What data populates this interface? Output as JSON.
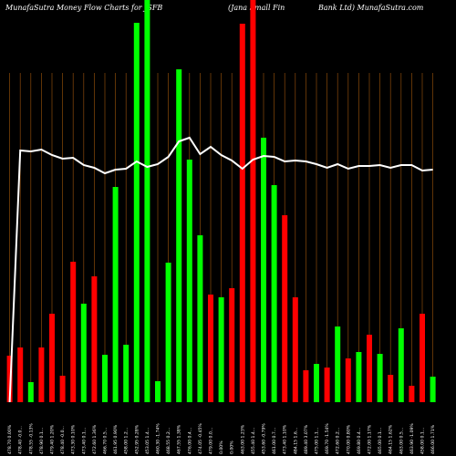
{
  "chart_data": {
    "type": "bar",
    "title": "MunafaSutra  Money Flow  Charts for JSFB",
    "subtitle": "(Jana  Small Fin",
    "subtitle2": "Bank Ltd) MunafaSutra.com",
    "grid": true,
    "colors": {
      "background": "#000000",
      "up": "#00ff00",
      "down": "#ff0000",
      "line": "#ffffff",
      "grid": "#8a4a0a"
    },
    "bars": [
      {
        "value": 51,
        "dir": "down"
      },
      {
        "value": 60,
        "dir": "down"
      },
      {
        "value": 22,
        "dir": "up"
      },
      {
        "value": 60,
        "dir": "down"
      },
      {
        "value": 97,
        "dir": "down"
      },
      {
        "value": 29,
        "dir": "down"
      },
      {
        "value": 154,
        "dir": "down"
      },
      {
        "value": 108,
        "dir": "up"
      },
      {
        "value": 138,
        "dir": "down"
      },
      {
        "value": 52,
        "dir": "up"
      },
      {
        "value": 236,
        "dir": "up"
      },
      {
        "value": 63,
        "dir": "up"
      },
      {
        "value": 416,
        "dir": "up"
      },
      {
        "value": 460,
        "dir": "up"
      },
      {
        "value": 23,
        "dir": "up"
      },
      {
        "value": 153,
        "dir": "up"
      },
      {
        "value": 365,
        "dir": "up"
      },
      {
        "value": 266,
        "dir": "up"
      },
      {
        "value": 183,
        "dir": "up"
      },
      {
        "value": 118,
        "dir": "down"
      },
      {
        "value": 115,
        "dir": "up"
      },
      {
        "value": 125,
        "dir": "down"
      },
      {
        "value": 415,
        "dir": "down"
      },
      {
        "value": 450,
        "dir": "down"
      },
      {
        "value": 290,
        "dir": "up"
      },
      {
        "value": 238,
        "dir": "up"
      },
      {
        "value": 205,
        "dir": "down"
      },
      {
        "value": 115,
        "dir": "down"
      },
      {
        "value": 35,
        "dir": "down"
      },
      {
        "value": 42,
        "dir": "up"
      },
      {
        "value": 38,
        "dir": "down"
      },
      {
        "value": 83,
        "dir": "up"
      },
      {
        "value": 48,
        "dir": "down"
      },
      {
        "value": 55,
        "dir": "up"
      },
      {
        "value": 74,
        "dir": "down"
      },
      {
        "value": 53,
        "dir": "up"
      },
      {
        "value": 30,
        "dir": "down"
      },
      {
        "value": 81,
        "dir": "up"
      },
      {
        "value": 18,
        "dir": "down"
      },
      {
        "value": 97,
        "dir": "down"
      },
      {
        "value": 28,
        "dir": "up"
      }
    ],
    "price_line": [
      0,
      276,
      275,
      277,
      271,
      267,
      268,
      260,
      257,
      251,
      255,
      256,
      264,
      258,
      261,
      269,
      286,
      290,
      272,
      280,
      271,
      265,
      256,
      266,
      270,
      269,
      264,
      265,
      264,
      261,
      257,
      261,
      256,
      259,
      259,
      260,
      257,
      260,
      260,
      254,
      255
    ],
    "x_labels": [
      "478.70  0.00% ",
      "478.40 -0.0...",
      "478.55 -0.13% ",
      "478.90  0.1...",
      "479.40  1.20% ",
      "478.40 -0.0...",
      "473.30  0.10% ",
      "473.40  0.1...",
      "472.60  1.36% ",
      "466.70  0.5...",
      "461.95  0.90% ",
      "458.00  1.2...",
      "452.95  0.28% ",
      "453.05  1.4...",
      "460.30 -1.74% ",
      "468.55  0.2...",
      "467.55  1.38% ",
      "476.00  0.4...",
      "474.05 -0.45% ",
      "479.00  0.0...",
      "0.00% ",
      "0.00% ",
      "463.00  1.23% ",
      "455.40  1.4...",
      "453.60 -0.79% ",
      "461.00  0.7...",
      "473.40  1.10% ",
      "484.15  1.6...",
      "489.40  3.07% ",
      "475.00  1.1...",
      "469.70 -1.54% ",
      "472.60  0.2...",
      "470.00  0.80% ",
      "469.80  0.4...",
      "472.00  1.17% ",
      "465.00  0.1...",
      "464.15  1.62% ",
      "463.00  0.5...",
      "463.90 -1.09% ",
      "458.00  0.1...",
      "466.00  1.71% "
    ]
  }
}
